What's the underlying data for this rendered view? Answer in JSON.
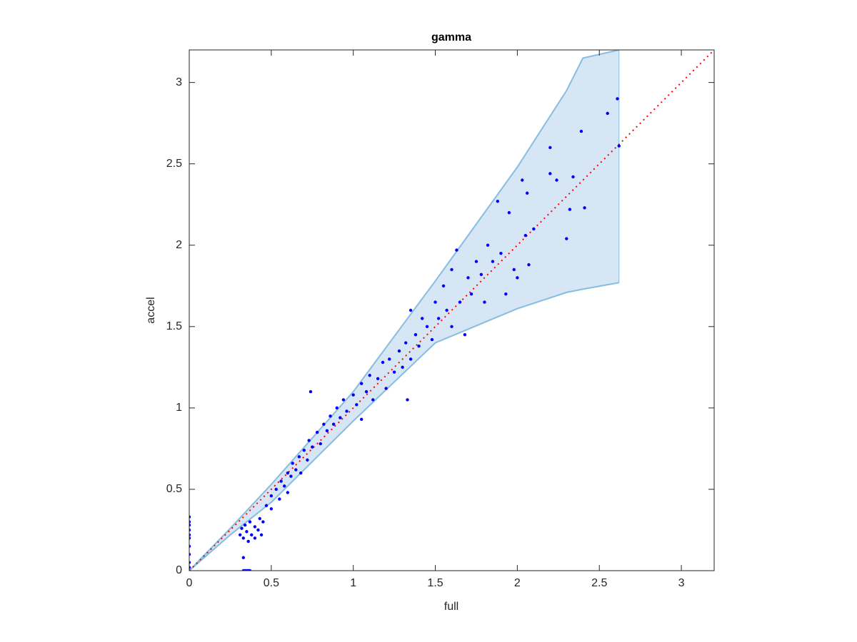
{
  "chart_data": {
    "type": "scatter",
    "title": "gamma",
    "x_label": "full",
    "y_label": "accel",
    "xlim": [
      0,
      3.2
    ],
    "ylim": [
      0,
      3.2
    ],
    "xticks": [
      0,
      0.5,
      1,
      1.5,
      2,
      2.5,
      3
    ],
    "yticks": [
      0,
      0.5,
      1,
      1.5,
      2,
      2.5,
      3
    ],
    "band": {
      "color": "#d6e6f4",
      "edge_color": "#86bde0",
      "x": [
        0,
        0.25,
        0.5,
        1,
        1.5,
        2,
        2.3,
        2.4,
        2.62
      ],
      "upper": [
        0,
        0.26,
        0.53,
        1.1,
        1.78,
        2.48,
        2.95,
        3.15,
        3.2
      ],
      "lower": [
        0,
        0.22,
        0.42,
        0.92,
        1.4,
        1.61,
        1.71,
        1.73,
        1.77
      ]
    },
    "reference_line": {
      "color": "#ff0000",
      "x": [
        0,
        3.2
      ],
      "y": [
        0,
        3.2
      ]
    },
    "points": {
      "color": "#0000ff",
      "x": [
        0,
        0,
        0,
        0,
        0,
        0,
        0,
        0,
        0,
        0,
        0.33,
        0.34,
        0.35,
        0.36,
        0.37,
        0.33,
        0.31,
        0.32,
        0.33,
        0.34,
        0.35,
        0.36,
        0.37,
        0.38,
        0.4,
        0.42,
        0.43,
        0.45,
        0.4,
        0.44,
        0.47,
        0.5,
        0.5,
        0.53,
        0.55,
        0.56,
        0.58,
        0.6,
        0.6,
        0.62,
        0.63,
        0.65,
        0.67,
        0.68,
        0.7,
        0.72,
        0.73,
        0.75,
        0.74,
        0.78,
        0.8,
        0.82,
        0.84,
        0.86,
        0.88,
        0.9,
        0.92,
        0.94,
        0.96,
        1.0,
        1.02,
        1.05,
        1.05,
        1.08,
        1.1,
        1.12,
        1.15,
        1.18,
        1.2,
        1.22,
        1.25,
        1.28,
        1.3,
        1.32,
        1.33,
        1.35,
        1.35,
        1.38,
        1.4,
        1.42,
        1.45,
        1.48,
        1.5,
        1.52,
        1.55,
        1.57,
        1.6,
        1.6,
        1.63,
        1.65,
        1.68,
        1.7,
        1.72,
        1.75,
        1.78,
        1.8,
        1.82,
        1.85,
        1.88,
        1.9,
        1.93,
        1.95,
        1.98,
        2.0,
        2.03,
        2.05,
        2.06,
        2.07,
        2.1,
        2.2,
        2.2,
        2.24,
        2.3,
        2.32,
        2.34,
        2.39,
        2.41,
        2.55,
        2.61,
        2.62
      ],
      "y": [
        0.02,
        0.05,
        0.1,
        0.15,
        0.2,
        0.22,
        0.25,
        0.28,
        0.3,
        0.33,
        0,
        0,
        0,
        0,
        0,
        0.08,
        0.22,
        0.26,
        0.2,
        0.28,
        0.24,
        0.18,
        0.3,
        0.22,
        0.27,
        0.25,
        0.32,
        0.3,
        0.2,
        0.22,
        0.4,
        0.38,
        0.46,
        0.5,
        0.44,
        0.55,
        0.52,
        0.6,
        0.48,
        0.58,
        0.66,
        0.62,
        0.7,
        0.6,
        0.74,
        0.68,
        0.8,
        0.76,
        1.1,
        0.85,
        0.78,
        0.9,
        0.86,
        0.95,
        0.9,
        1.0,
        0.94,
        1.05,
        0.98,
        1.08,
        1.02,
        1.15,
        0.93,
        1.1,
        1.2,
        1.05,
        1.18,
        1.28,
        1.12,
        1.3,
        1.22,
        1.35,
        1.25,
        1.4,
        1.05,
        1.3,
        1.6,
        1.45,
        1.38,
        1.55,
        1.5,
        1.42,
        1.65,
        1.55,
        1.75,
        1.6,
        1.5,
        1.85,
        1.97,
        1.65,
        1.45,
        1.8,
        1.7,
        1.9,
        1.82,
        1.65,
        2.0,
        1.9,
        2.27,
        1.95,
        1.7,
        2.2,
        1.85,
        1.8,
        2.4,
        2.06,
        2.32,
        1.88,
        2.1,
        2.6,
        2.44,
        2.4,
        2.04,
        2.22,
        2.42,
        2.7,
        2.23,
        2.81,
        2.9,
        2.61
      ]
    }
  }
}
